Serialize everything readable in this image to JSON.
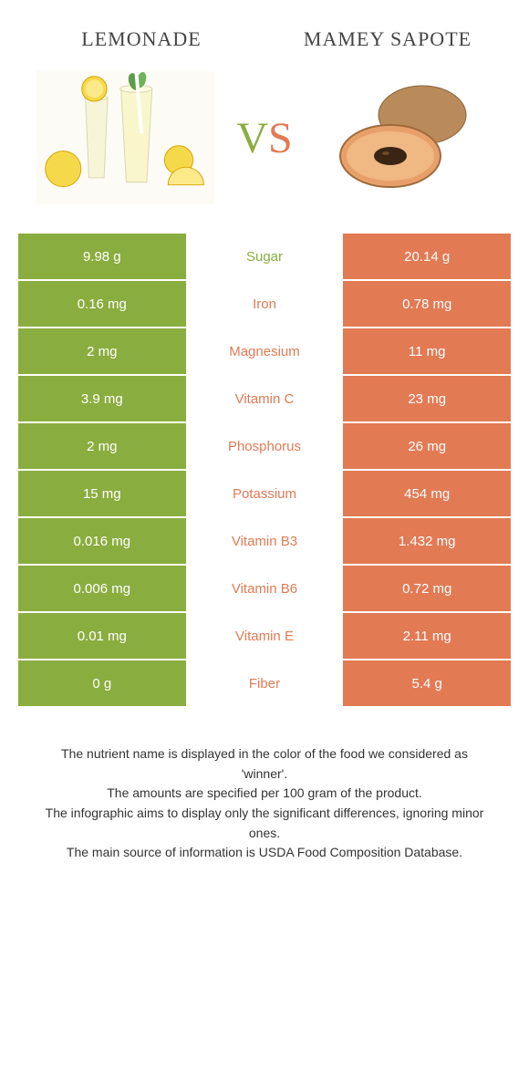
{
  "foods": {
    "left": {
      "name": "Lemonade",
      "color": "#8aad3f"
    },
    "right": {
      "name": "Mamey Sapote",
      "color": "#e27a54"
    }
  },
  "vs": {
    "v": "V",
    "s": "S"
  },
  "rows": [
    {
      "left": "9.98 g",
      "label": "Sugar",
      "right": "20.14 g",
      "winner": "left"
    },
    {
      "left": "0.16 mg",
      "label": "Iron",
      "right": "0.78 mg",
      "winner": "right"
    },
    {
      "left": "2 mg",
      "label": "Magnesium",
      "right": "11 mg",
      "winner": "right"
    },
    {
      "left": "3.9 mg",
      "label": "Vitamin C",
      "right": "23 mg",
      "winner": "right"
    },
    {
      "left": "2 mg",
      "label": "Phosphorus",
      "right": "26 mg",
      "winner": "right"
    },
    {
      "left": "15 mg",
      "label": "Potassium",
      "right": "454 mg",
      "winner": "right"
    },
    {
      "left": "0.016 mg",
      "label": "Vitamin B3",
      "right": "1.432 mg",
      "winner": "right"
    },
    {
      "left": "0.006 mg",
      "label": "Vitamin B6",
      "right": "0.72 mg",
      "winner": "right"
    },
    {
      "left": "0.01 mg",
      "label": "Vitamin E",
      "right": "2.11 mg",
      "winner": "right"
    },
    {
      "left": "0 g",
      "label": "Fiber",
      "right": "5.4 g",
      "winner": "right"
    }
  ],
  "footer": {
    "line1": "The nutrient name is displayed in the color of the food we considered as 'winner'.",
    "line2": "The amounts are specified per 100 gram of the product.",
    "line3": "The infographic aims to display only the significant differences, ignoring minor ones.",
    "line4": "The main source of information is USDA Food Composition Database."
  },
  "colors": {
    "left_bg": "#8aad3f",
    "right_bg": "#e27a54",
    "text": "#333333",
    "white": "#ffffff"
  }
}
